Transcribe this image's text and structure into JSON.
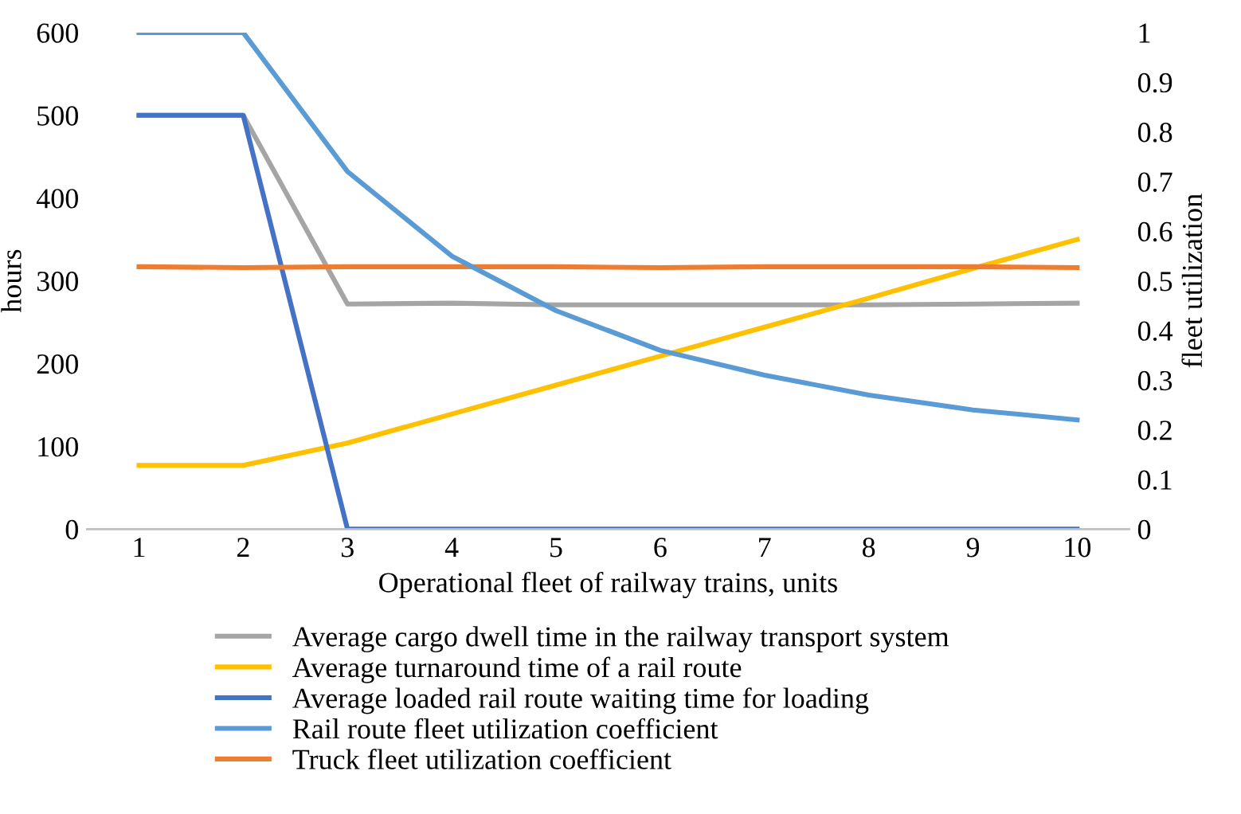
{
  "chart_data": {
    "type": "line",
    "xlabel": "Operational fleet of railway trains, units",
    "ylabel": "hours",
    "y2label": "fleet utilization",
    "categories": [
      "1",
      "2",
      "3",
      "4",
      "5",
      "6",
      "7",
      "8",
      "9",
      "10"
    ],
    "series": [
      {
        "name": "Average cargo dwell time in the railway transport system",
        "color": "#a5a5a5",
        "values": [
          500,
          500,
          272,
          273,
          271,
          271,
          271,
          271,
          272,
          273
        ]
      },
      {
        "name": "Average turnaround time of a rail route",
        "color": "#ffc000",
        "values": [
          77,
          77,
          104,
          139,
          174,
          209,
          244,
          279,
          315,
          350
        ]
      },
      {
        "name": "Average loaded rail route waiting time for loading",
        "color": "#4472c4",
        "values": [
          500,
          500,
          0,
          0,
          0,
          0,
          0,
          0,
          0,
          0
        ]
      },
      {
        "name": "Rail route fleet utilization coefficient",
        "color": "#5b9bd5",
        "axis": "y2",
        "values": [
          1,
          1,
          0.72,
          0.55,
          0.44,
          0.36,
          0.31,
          0.27,
          0.24,
          0.22
        ]
      },
      {
        "name": "Truck fleet utilization coefficient",
        "color": "#ed7d31",
        "values": [
          317,
          316,
          317,
          317,
          317,
          316,
          317,
          317,
          317,
          316
        ]
      }
    ],
    "ylim": [
      0,
      600
    ],
    "yticks": [
      0,
      100,
      200,
      300,
      400,
      500,
      600
    ],
    "y2lim": [
      0,
      1
    ],
    "y2ticks": [
      0,
      0.1,
      0.2,
      0.3,
      0.4,
      0.5,
      0.6,
      0.7,
      0.8,
      0.9,
      1
    ],
    "grid": false,
    "legend": "bottom",
    "marker": "none",
    "line_style": "solid"
  }
}
